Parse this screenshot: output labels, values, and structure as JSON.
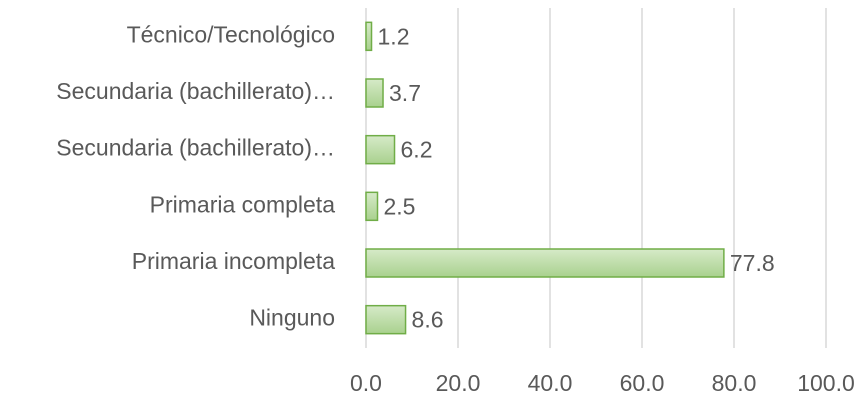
{
  "chart_data": {
    "type": "bar",
    "orientation": "horizontal",
    "categories": [
      "Técnico/Tecnológico",
      "Secundaria (bachillerato)…",
      "Secundaria (bachillerato)…",
      "Primaria completa",
      "Primaria incompleta",
      "Ninguno"
    ],
    "values": [
      1.2,
      3.7,
      6.2,
      2.5,
      77.8,
      8.6
    ],
    "color": "#70ad47",
    "xlim": [
      0,
      100
    ],
    "xticks": [
      {
        "value": 0,
        "label": "0.0"
      },
      {
        "value": 20,
        "label": "20.0"
      },
      {
        "value": 40,
        "label": "40.0"
      },
      {
        "value": 60,
        "label": "60.0"
      },
      {
        "value": 80,
        "label": "80.0"
      },
      {
        "value": 100,
        "label": "100.0"
      }
    ],
    "grid": true
  }
}
